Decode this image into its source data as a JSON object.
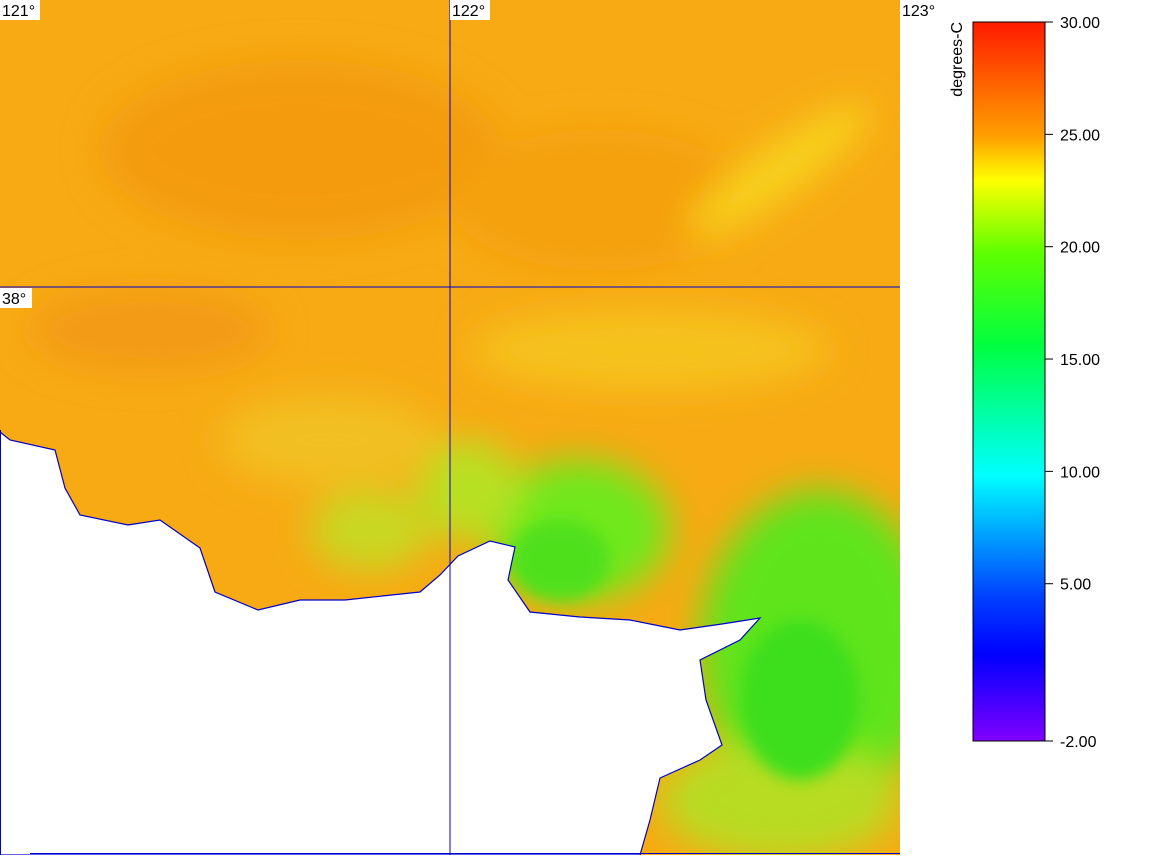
{
  "map": {
    "graticule": {
      "longitudes": [
        "121°",
        "122°",
        "123°"
      ],
      "latitudes": [
        "38°"
      ]
    },
    "colorbar": {
      "label": "degrees-C",
      "lim": [
        -2,
        30
      ],
      "ticks": [
        {
          "value": 30,
          "label": "30.00"
        },
        {
          "value": 25,
          "label": "25.00"
        },
        {
          "value": 20,
          "label": "20.00"
        },
        {
          "value": 15,
          "label": "15.00"
        },
        {
          "value": 10,
          "label": "10.00"
        },
        {
          "value": 5,
          "label": "5.00"
        },
        {
          "value": -2,
          "label": "-2.00"
        }
      ]
    }
  }
}
